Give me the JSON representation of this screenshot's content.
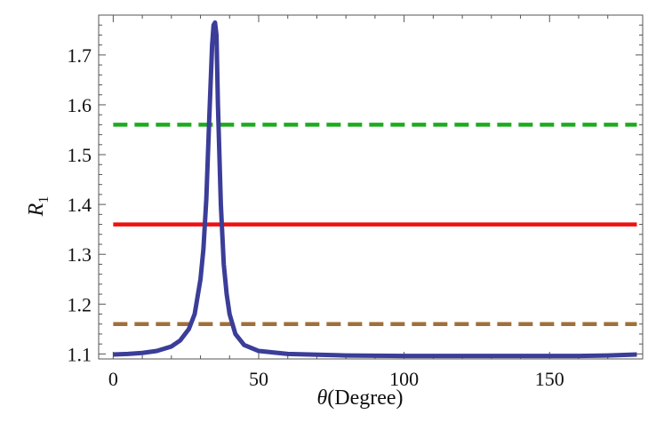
{
  "chart_data": {
    "type": "line",
    "xlabel_var": "θ",
    "xlabel_unit": "(Degree)",
    "ylabel_var": "R",
    "ylabel_sub": "1",
    "xlim": [
      -5,
      182
    ],
    "ylim": [
      1.09,
      1.78
    ],
    "xticks": [
      0,
      50,
      100,
      150
    ],
    "yticks": [
      1.1,
      1.2,
      1.3,
      1.4,
      1.5,
      1.6,
      1.7
    ],
    "grid": false,
    "series": [
      {
        "style": "solid",
        "color": "#3b3d99",
        "x": [
          0,
          5,
          10,
          15,
          20,
          23,
          26,
          28,
          30,
          31,
          32,
          33,
          34,
          34.5,
          35,
          35.5,
          36,
          37,
          38,
          39,
          40,
          42,
          45,
          50,
          60,
          80,
          100,
          120,
          140,
          160,
          170,
          180
        ],
        "y": [
          1.099,
          1.1,
          1.102,
          1.106,
          1.115,
          1.127,
          1.15,
          1.18,
          1.25,
          1.31,
          1.41,
          1.57,
          1.72,
          1.76,
          1.765,
          1.74,
          1.6,
          1.4,
          1.28,
          1.22,
          1.18,
          1.14,
          1.118,
          1.106,
          1.1,
          1.097,
          1.096,
          1.096,
          1.096,
          1.096,
          1.097,
          1.099
        ]
      },
      {
        "style": "dashed",
        "color": "#1faa1f",
        "x": [
          0,
          180
        ],
        "y": [
          1.56,
          1.56
        ]
      },
      {
        "style": "solid",
        "color": "#ee1111",
        "x": [
          0,
          180
        ],
        "y": [
          1.36,
          1.36
        ]
      },
      {
        "style": "dashed",
        "color": "#a0703a",
        "x": [
          0,
          180
        ],
        "y": [
          1.16,
          1.16
        ]
      }
    ]
  }
}
